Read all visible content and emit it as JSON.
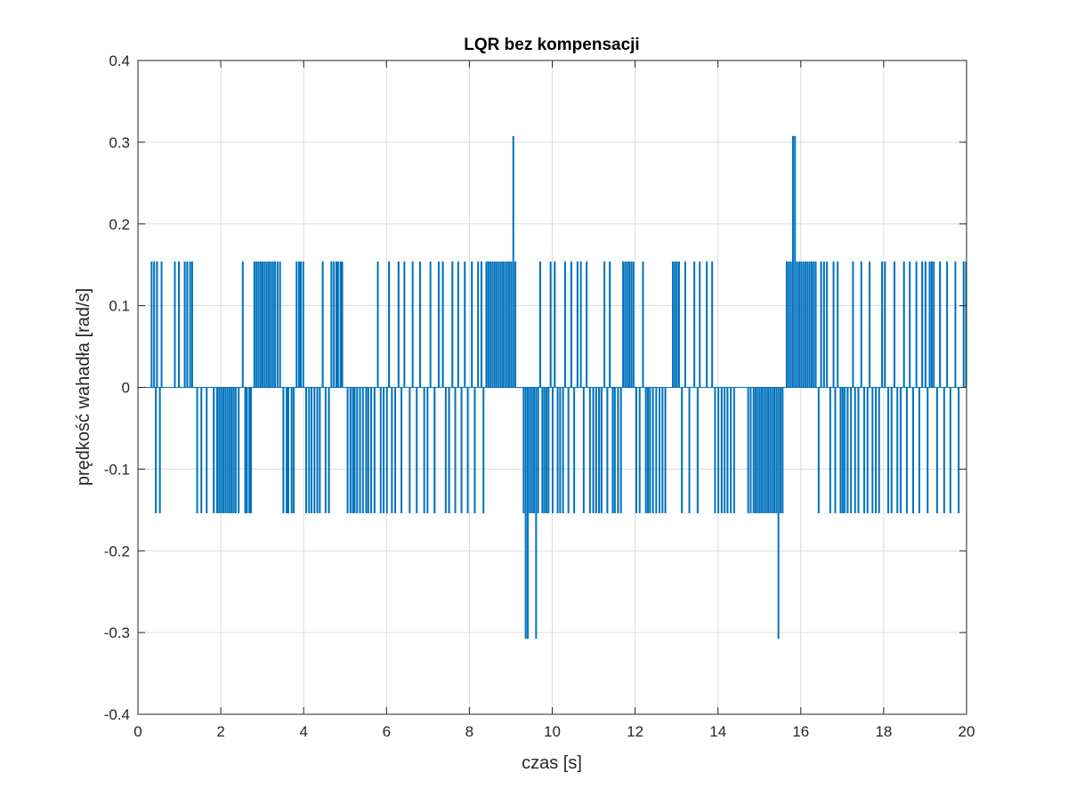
{
  "chart_data": {
    "type": "line",
    "title": "LQR bez kompensacji",
    "xlabel": "czas [s]",
    "ylabel": "prędkość wahadła [rad/s]",
    "xlim": [
      0,
      20
    ],
    "ylim": [
      -0.4,
      0.4
    ],
    "x_ticks": [
      "0",
      "2",
      "4",
      "6",
      "8",
      "10",
      "12",
      "14",
      "16",
      "18",
      "20"
    ],
    "y_ticks": [
      "-0.4",
      "-0.3",
      "-0.2",
      "-0.1",
      "0",
      "0.1",
      "0.2",
      "0.3",
      "0.4"
    ],
    "grid": true,
    "line_color": "#0072BD",
    "quantization_step": 0.1535,
    "pulses": [
      {
        "t": 0.32,
        "v": 0.1535
      },
      {
        "t": 0.38,
        "v": 0.1535
      },
      {
        "t": 0.42,
        "v": -0.1535
      },
      {
        "t": 0.45,
        "v": 0.1535
      },
      {
        "t": 0.52,
        "v": -0.1535
      },
      {
        "t": 0.56,
        "v": 0.1535
      },
      {
        "t": 0.88,
        "v": 0.1535
      },
      {
        "t": 0.98,
        "v": 0.1535
      },
      {
        "t": 1.12,
        "v": 0.1535
      },
      {
        "t": 1.18,
        "v": 0.1535
      },
      {
        "t": 1.25,
        "v": 0.1535
      },
      {
        "t": 1.3,
        "v": 0.1535
      },
      {
        "t": 1.42,
        "v": -0.1535
      },
      {
        "t": 1.52,
        "v": -0.1535
      },
      {
        "t": 1.65,
        "v": -0.1535
      },
      {
        "t": 1.82,
        "v": -0.1535
      },
      {
        "t": 1.9,
        "v": -0.1535
      },
      {
        "t": 1.95,
        "v": -0.1535
      },
      {
        "t": 2.0,
        "v": -0.1535
      },
      {
        "t": 2.05,
        "v": -0.1535
      },
      {
        "t": 2.1,
        "v": -0.1535
      },
      {
        "t": 2.15,
        "v": -0.1535
      },
      {
        "t": 2.2,
        "v": -0.1535
      },
      {
        "t": 2.25,
        "v": -0.1535
      },
      {
        "t": 2.3,
        "v": -0.1535
      },
      {
        "t": 2.35,
        "v": -0.1535
      },
      {
        "t": 2.42,
        "v": -0.1535
      },
      {
        "t": 2.52,
        "v": 0.1535
      },
      {
        "t": 2.58,
        "v": -0.1535
      },
      {
        "t": 2.62,
        "v": -0.1535
      },
      {
        "t": 2.68,
        "v": -0.1535
      },
      {
        "t": 2.72,
        "v": -0.1535
      },
      {
        "t": 2.8,
        "v": 0.1535
      },
      {
        "t": 2.85,
        "v": 0.1535
      },
      {
        "t": 2.9,
        "v": 0.1535
      },
      {
        "t": 2.95,
        "v": 0.1535
      },
      {
        "t": 3.0,
        "v": 0.1535
      },
      {
        "t": 3.05,
        "v": 0.1535
      },
      {
        "t": 3.1,
        "v": 0.1535
      },
      {
        "t": 3.15,
        "v": 0.1535
      },
      {
        "t": 3.2,
        "v": 0.1535
      },
      {
        "t": 3.25,
        "v": 0.1535
      },
      {
        "t": 3.3,
        "v": 0.1535
      },
      {
        "t": 3.36,
        "v": 0.1535
      },
      {
        "t": 3.42,
        "v": 0.1535
      },
      {
        "t": 3.5,
        "v": -0.1535
      },
      {
        "t": 3.58,
        "v": -0.1535
      },
      {
        "t": 3.62,
        "v": -0.1535
      },
      {
        "t": 3.7,
        "v": -0.1535
      },
      {
        "t": 3.75,
        "v": -0.1535
      },
      {
        "t": 3.82,
        "v": 0.1535
      },
      {
        "t": 3.88,
        "v": 0.1535
      },
      {
        "t": 3.92,
        "v": 0.1535
      },
      {
        "t": 3.98,
        "v": 0.1535
      },
      {
        "t": 4.05,
        "v": -0.1535
      },
      {
        "t": 4.12,
        "v": -0.1535
      },
      {
        "t": 4.18,
        "v": -0.1535
      },
      {
        "t": 4.25,
        "v": -0.1535
      },
      {
        "t": 4.32,
        "v": -0.1535
      },
      {
        "t": 4.38,
        "v": -0.1535
      },
      {
        "t": 4.45,
        "v": 0.1535
      },
      {
        "t": 4.52,
        "v": -0.1535
      },
      {
        "t": 4.6,
        "v": -0.1535
      },
      {
        "t": 4.66,
        "v": 0.1535
      },
      {
        "t": 4.72,
        "v": 0.1535
      },
      {
        "t": 4.78,
        "v": 0.1535
      },
      {
        "t": 4.82,
        "v": 0.1535
      },
      {
        "t": 4.88,
        "v": 0.1535
      },
      {
        "t": 4.92,
        "v": 0.1535
      },
      {
        "t": 5.05,
        "v": -0.1535
      },
      {
        "t": 5.12,
        "v": -0.1535
      },
      {
        "t": 5.18,
        "v": -0.1535
      },
      {
        "t": 5.22,
        "v": -0.1535
      },
      {
        "t": 5.28,
        "v": -0.1535
      },
      {
        "t": 5.35,
        "v": -0.1535
      },
      {
        "t": 5.42,
        "v": -0.1535
      },
      {
        "t": 5.5,
        "v": -0.1535
      },
      {
        "t": 5.55,
        "v": -0.1535
      },
      {
        "t": 5.62,
        "v": -0.1535
      },
      {
        "t": 5.7,
        "v": -0.1535
      },
      {
        "t": 5.78,
        "v": 0.1535
      },
      {
        "t": 5.85,
        "v": -0.1535
      },
      {
        "t": 5.92,
        "v": -0.1535
      },
      {
        "t": 6.0,
        "v": -0.1535
      },
      {
        "t": 6.05,
        "v": 0.1535
      },
      {
        "t": 6.12,
        "v": -0.1535
      },
      {
        "t": 6.2,
        "v": -0.1535
      },
      {
        "t": 6.28,
        "v": 0.1535
      },
      {
        "t": 6.35,
        "v": -0.1535
      },
      {
        "t": 6.42,
        "v": 0.1535
      },
      {
        "t": 6.55,
        "v": -0.1535
      },
      {
        "t": 6.62,
        "v": 0.1535
      },
      {
        "t": 6.72,
        "v": -0.1535
      },
      {
        "t": 6.8,
        "v": 0.1535
      },
      {
        "t": 6.9,
        "v": -0.1535
      },
      {
        "t": 6.98,
        "v": -0.1535
      },
      {
        "t": 7.05,
        "v": 0.1535
      },
      {
        "t": 7.15,
        "v": -0.1535
      },
      {
        "t": 7.25,
        "v": 0.1535
      },
      {
        "t": 7.35,
        "v": 0.1535
      },
      {
        "t": 7.42,
        "v": -0.1535
      },
      {
        "t": 7.5,
        "v": -0.1535
      },
      {
        "t": 7.58,
        "v": 0.1535
      },
      {
        "t": 7.65,
        "v": -0.1535
      },
      {
        "t": 7.72,
        "v": 0.1535
      },
      {
        "t": 7.8,
        "v": -0.1535
      },
      {
        "t": 7.88,
        "v": 0.1535
      },
      {
        "t": 7.95,
        "v": -0.1535
      },
      {
        "t": 8.05,
        "v": 0.1535
      },
      {
        "t": 8.12,
        "v": -0.1535
      },
      {
        "t": 8.2,
        "v": 0.1535
      },
      {
        "t": 8.28,
        "v": 0.1535
      },
      {
        "t": 8.33,
        "v": -0.1535
      },
      {
        "t": 8.4,
        "v": 0.1535
      },
      {
        "t": 8.45,
        "v": 0.1535
      },
      {
        "t": 8.5,
        "v": 0.1535
      },
      {
        "t": 8.55,
        "v": 0.1535
      },
      {
        "t": 8.6,
        "v": 0.1535
      },
      {
        "t": 8.65,
        "v": 0.1535
      },
      {
        "t": 8.7,
        "v": 0.1535
      },
      {
        "t": 8.75,
        "v": 0.1535
      },
      {
        "t": 8.8,
        "v": 0.1535
      },
      {
        "t": 8.85,
        "v": 0.1535
      },
      {
        "t": 8.9,
        "v": 0.1535
      },
      {
        "t": 8.95,
        "v": 0.1535
      },
      {
        "t": 9.0,
        "v": 0.1535
      },
      {
        "t": 9.05,
        "v": 0.307
      },
      {
        "t": 9.1,
        "v": 0.1535
      },
      {
        "t": 9.3,
        "v": -0.1535
      },
      {
        "t": 9.35,
        "v": -0.307
      },
      {
        "t": 9.4,
        "v": -0.307
      },
      {
        "t": 9.45,
        "v": -0.1535
      },
      {
        "t": 9.5,
        "v": -0.1535
      },
      {
        "t": 9.55,
        "v": -0.1535
      },
      {
        "t": 9.6,
        "v": -0.307
      },
      {
        "t": 9.65,
        "v": -0.1535
      },
      {
        "t": 9.7,
        "v": 0.1535
      },
      {
        "t": 9.75,
        "v": -0.1535
      },
      {
        "t": 9.8,
        "v": -0.1535
      },
      {
        "t": 9.85,
        "v": -0.1535
      },
      {
        "t": 9.9,
        "v": -0.1535
      },
      {
        "t": 9.95,
        "v": 0.1535
      },
      {
        "t": 10.0,
        "v": -0.1535
      },
      {
        "t": 10.05,
        "v": 0.1535
      },
      {
        "t": 10.12,
        "v": -0.1535
      },
      {
        "t": 10.18,
        "v": -0.1535
      },
      {
        "t": 10.25,
        "v": -0.1535
      },
      {
        "t": 10.3,
        "v": 0.1535
      },
      {
        "t": 10.38,
        "v": -0.1535
      },
      {
        "t": 10.45,
        "v": 0.1535
      },
      {
        "t": 10.52,
        "v": -0.1535
      },
      {
        "t": 10.6,
        "v": 0.1535
      },
      {
        "t": 10.68,
        "v": 0.1535
      },
      {
        "t": 10.75,
        "v": -0.1535
      },
      {
        "t": 10.82,
        "v": 0.1535
      },
      {
        "t": 10.9,
        "v": -0.1535
      },
      {
        "t": 10.98,
        "v": -0.1535
      },
      {
        "t": 11.05,
        "v": -0.1535
      },
      {
        "t": 11.12,
        "v": -0.1535
      },
      {
        "t": 11.18,
        "v": -0.1535
      },
      {
        "t": 11.25,
        "v": 0.1535
      },
      {
        "t": 11.32,
        "v": -0.1535
      },
      {
        "t": 11.38,
        "v": 0.1535
      },
      {
        "t": 11.45,
        "v": -0.1535
      },
      {
        "t": 11.5,
        "v": -0.1535
      },
      {
        "t": 11.58,
        "v": -0.1535
      },
      {
        "t": 11.65,
        "v": -0.1535
      },
      {
        "t": 11.7,
        "v": 0.1535
      },
      {
        "t": 11.75,
        "v": 0.1535
      },
      {
        "t": 11.8,
        "v": 0.1535
      },
      {
        "t": 11.85,
        "v": 0.1535
      },
      {
        "t": 11.9,
        "v": 0.1535
      },
      {
        "t": 11.95,
        "v": 0.1535
      },
      {
        "t": 12.02,
        "v": -0.1535
      },
      {
        "t": 12.1,
        "v": -0.1535
      },
      {
        "t": 12.18,
        "v": 0.1535
      },
      {
        "t": 12.25,
        "v": -0.1535
      },
      {
        "t": 12.3,
        "v": -0.1535
      },
      {
        "t": 12.35,
        "v": -0.1535
      },
      {
        "t": 12.42,
        "v": -0.1535
      },
      {
        "t": 12.5,
        "v": -0.1535
      },
      {
        "t": 12.58,
        "v": -0.1535
      },
      {
        "t": 12.65,
        "v": -0.1535
      },
      {
        "t": 12.72,
        "v": -0.1535
      },
      {
        "t": 12.9,
        "v": 0.1535
      },
      {
        "t": 12.95,
        "v": 0.1535
      },
      {
        "t": 13.0,
        "v": 0.1535
      },
      {
        "t": 13.05,
        "v": 0.1535
      },
      {
        "t": 13.12,
        "v": -0.1535
      },
      {
        "t": 13.2,
        "v": 0.1535
      },
      {
        "t": 13.3,
        "v": -0.1535
      },
      {
        "t": 13.42,
        "v": 0.1535
      },
      {
        "t": 13.5,
        "v": -0.1535
      },
      {
        "t": 13.55,
        "v": 0.1535
      },
      {
        "t": 13.72,
        "v": 0.1535
      },
      {
        "t": 13.85,
        "v": 0.1535
      },
      {
        "t": 13.92,
        "v": -0.1535
      },
      {
        "t": 14.0,
        "v": -0.1535
      },
      {
        "t": 14.08,
        "v": -0.1535
      },
      {
        "t": 14.15,
        "v": -0.1535
      },
      {
        "t": 14.22,
        "v": -0.1535
      },
      {
        "t": 14.3,
        "v": -0.1535
      },
      {
        "t": 14.38,
        "v": -0.1535
      },
      {
        "t": 14.72,
        "v": -0.1535
      },
      {
        "t": 14.78,
        "v": -0.1535
      },
      {
        "t": 14.85,
        "v": -0.1535
      },
      {
        "t": 14.9,
        "v": -0.1535
      },
      {
        "t": 14.95,
        "v": -0.1535
      },
      {
        "t": 15.0,
        "v": -0.1535
      },
      {
        "t": 15.05,
        "v": -0.1535
      },
      {
        "t": 15.1,
        "v": -0.1535
      },
      {
        "t": 15.15,
        "v": -0.1535
      },
      {
        "t": 15.2,
        "v": -0.1535
      },
      {
        "t": 15.25,
        "v": -0.1535
      },
      {
        "t": 15.3,
        "v": -0.1535
      },
      {
        "t": 15.35,
        "v": -0.1535
      },
      {
        "t": 15.4,
        "v": -0.1535
      },
      {
        "t": 15.45,
        "v": -0.307
      },
      {
        "t": 15.5,
        "v": -0.1535
      },
      {
        "t": 15.55,
        "v": -0.1535
      },
      {
        "t": 15.65,
        "v": 0.1535
      },
      {
        "t": 15.7,
        "v": 0.1535
      },
      {
        "t": 15.75,
        "v": 0.1535
      },
      {
        "t": 15.8,
        "v": 0.307
      },
      {
        "t": 15.85,
        "v": 0.307
      },
      {
        "t": 15.9,
        "v": 0.1535
      },
      {
        "t": 15.95,
        "v": 0.1535
      },
      {
        "t": 16.0,
        "v": 0.1535
      },
      {
        "t": 16.05,
        "v": 0.1535
      },
      {
        "t": 16.1,
        "v": 0.1535
      },
      {
        "t": 16.15,
        "v": 0.1535
      },
      {
        "t": 16.2,
        "v": 0.1535
      },
      {
        "t": 16.25,
        "v": 0.1535
      },
      {
        "t": 16.3,
        "v": 0.1535
      },
      {
        "t": 16.35,
        "v": 0.1535
      },
      {
        "t": 16.42,
        "v": -0.1535
      },
      {
        "t": 16.48,
        "v": 0.1535
      },
      {
        "t": 16.55,
        "v": 0.1535
      },
      {
        "t": 16.62,
        "v": 0.1535
      },
      {
        "t": 16.7,
        "v": -0.1535
      },
      {
        "t": 16.78,
        "v": 0.1535
      },
      {
        "t": 16.82,
        "v": -0.1535
      },
      {
        "t": 16.88,
        "v": 0.1535
      },
      {
        "t": 16.95,
        "v": -0.1535
      },
      {
        "t": 17.0,
        "v": -0.1535
      },
      {
        "t": 17.05,
        "v": -0.1535
      },
      {
        "t": 17.12,
        "v": -0.1535
      },
      {
        "t": 17.2,
        "v": -0.1535
      },
      {
        "t": 17.25,
        "v": 0.1535
      },
      {
        "t": 17.3,
        "v": -0.1535
      },
      {
        "t": 17.38,
        "v": -0.1535
      },
      {
        "t": 17.45,
        "v": 0.1535
      },
      {
        "t": 17.52,
        "v": -0.1535
      },
      {
        "t": 17.6,
        "v": -0.1535
      },
      {
        "t": 17.65,
        "v": 0.1535
      },
      {
        "t": 17.72,
        "v": -0.1535
      },
      {
        "t": 17.8,
        "v": -0.1535
      },
      {
        "t": 17.88,
        "v": -0.1535
      },
      {
        "t": 17.95,
        "v": 0.1535
      },
      {
        "t": 18.02,
        "v": 0.1535
      },
      {
        "t": 18.1,
        "v": -0.1535
      },
      {
        "t": 18.18,
        "v": -0.1535
      },
      {
        "t": 18.25,
        "v": 0.1535
      },
      {
        "t": 18.32,
        "v": -0.1535
      },
      {
        "t": 18.4,
        "v": -0.1535
      },
      {
        "t": 18.48,
        "v": 0.1535
      },
      {
        "t": 18.55,
        "v": -0.1535
      },
      {
        "t": 18.62,
        "v": 0.1535
      },
      {
        "t": 18.7,
        "v": -0.1535
      },
      {
        "t": 18.78,
        "v": 0.1535
      },
      {
        "t": 18.85,
        "v": -0.1535
      },
      {
        "t": 18.92,
        "v": 0.1535
      },
      {
        "t": 19.0,
        "v": 0.1535
      },
      {
        "t": 19.05,
        "v": -0.1535
      },
      {
        "t": 19.1,
        "v": 0.1535
      },
      {
        "t": 19.15,
        "v": 0.1535
      },
      {
        "t": 19.2,
        "v": 0.1535
      },
      {
        "t": 19.28,
        "v": -0.1535
      },
      {
        "t": 19.35,
        "v": 0.1535
      },
      {
        "t": 19.45,
        "v": -0.1535
      },
      {
        "t": 19.52,
        "v": 0.1535
      },
      {
        "t": 19.6,
        "v": -0.1535
      },
      {
        "t": 19.72,
        "v": 0.1535
      },
      {
        "t": 19.8,
        "v": -0.1535
      },
      {
        "t": 19.92,
        "v": 0.1535
      },
      {
        "t": 19.98,
        "v": 0.1535
      }
    ]
  }
}
